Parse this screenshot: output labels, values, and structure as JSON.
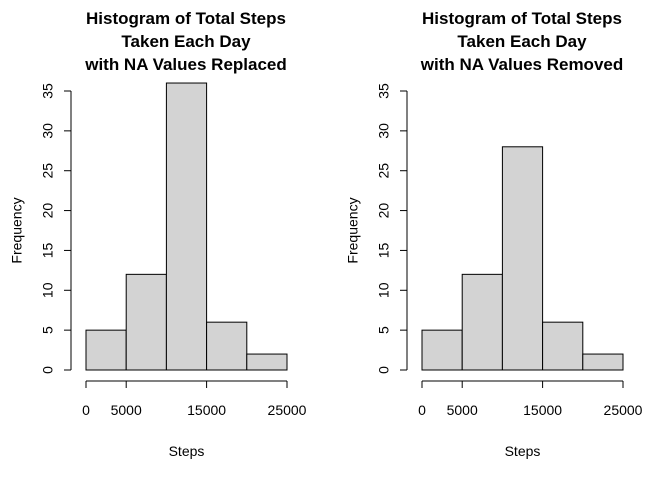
{
  "chart_data": [
    {
      "type": "bar",
      "title_lines": [
        "Histogram of Total Steps",
        "Taken Each Day",
        "with NA Values Replaced"
      ],
      "xlabel": "Steps",
      "ylabel": "Frequency",
      "bins": [
        {
          "from": 0,
          "to": 5000,
          "value": 5
        },
        {
          "from": 5000,
          "to": 10000,
          "value": 12
        },
        {
          "from": 10000,
          "to": 15000,
          "value": 36
        },
        {
          "from": 15000,
          "to": 20000,
          "value": 6
        },
        {
          "from": 20000,
          "to": 25000,
          "value": 2
        }
      ],
      "xlim": [
        0,
        25000
      ],
      "ylim": [
        0,
        35
      ],
      "x_tick_labels": [
        "0",
        "5000",
        "15000",
        "25000"
      ],
      "x_tick_values": [
        0,
        5000,
        15000,
        25000
      ],
      "y_ticks": [
        0,
        5,
        10,
        15,
        20,
        25,
        30,
        35
      ],
      "fill_color": "#d3d3d3",
      "grid": false
    },
    {
      "type": "bar",
      "title_lines": [
        "Histogram of Total Steps",
        "Taken Each Day",
        "with NA Values Removed"
      ],
      "xlabel": "Steps",
      "ylabel": "Frequency",
      "bins": [
        {
          "from": 0,
          "to": 5000,
          "value": 5
        },
        {
          "from": 5000,
          "to": 10000,
          "value": 12
        },
        {
          "from": 10000,
          "to": 15000,
          "value": 28
        },
        {
          "from": 15000,
          "to": 20000,
          "value": 6
        },
        {
          "from": 20000,
          "to": 25000,
          "value": 2
        }
      ],
      "xlim": [
        0,
        25000
      ],
      "ylim": [
        0,
        35
      ],
      "x_tick_labels": [
        "0",
        "5000",
        "15000",
        "25000"
      ],
      "x_tick_values": [
        0,
        5000,
        15000,
        25000
      ],
      "y_ticks": [
        0,
        5,
        10,
        15,
        20,
        25,
        30,
        35
      ],
      "fill_color": "#d3d3d3",
      "grid": false
    }
  ]
}
